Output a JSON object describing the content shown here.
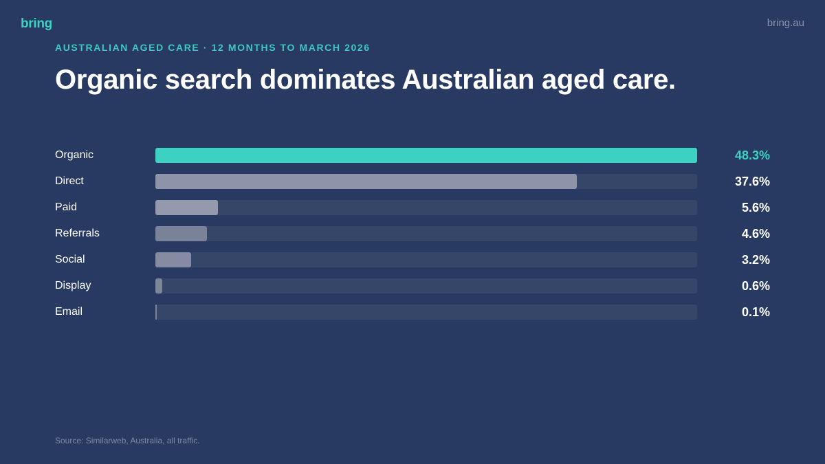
{
  "brand": {
    "logo": "bring",
    "site": "bring.au",
    "accent": "#3dd1c4"
  },
  "kicker": "AUSTRALIAN AGED CARE · 12 MONTHS TO MARCH 2026",
  "title": "Organic search dominates Australian aged care.",
  "source": "Source: Similarweb, Australia, all traffic.",
  "chart_data": {
    "type": "bar",
    "orientation": "horizontal",
    "categories": [
      "Organic",
      "Direct",
      "Paid",
      "Referrals",
      "Social",
      "Display",
      "Email"
    ],
    "values": [
      48.3,
      37.6,
      5.6,
      4.6,
      3.2,
      0.6,
      0.1
    ],
    "value_labels": [
      "48.3%",
      "37.6%",
      "5.6%",
      "4.6%",
      "3.2%",
      "0.6%",
      "0.1%"
    ],
    "unit": "%",
    "xlim": [
      0,
      48.3
    ],
    "grid": false,
    "colors": [
      "#3dd1c4",
      "#8e93a9",
      "#9499ae",
      "#7a8299",
      "#848ba2",
      "#7d859d",
      "#7d859d"
    ],
    "highlight_value_color": "#3dd1c4"
  }
}
